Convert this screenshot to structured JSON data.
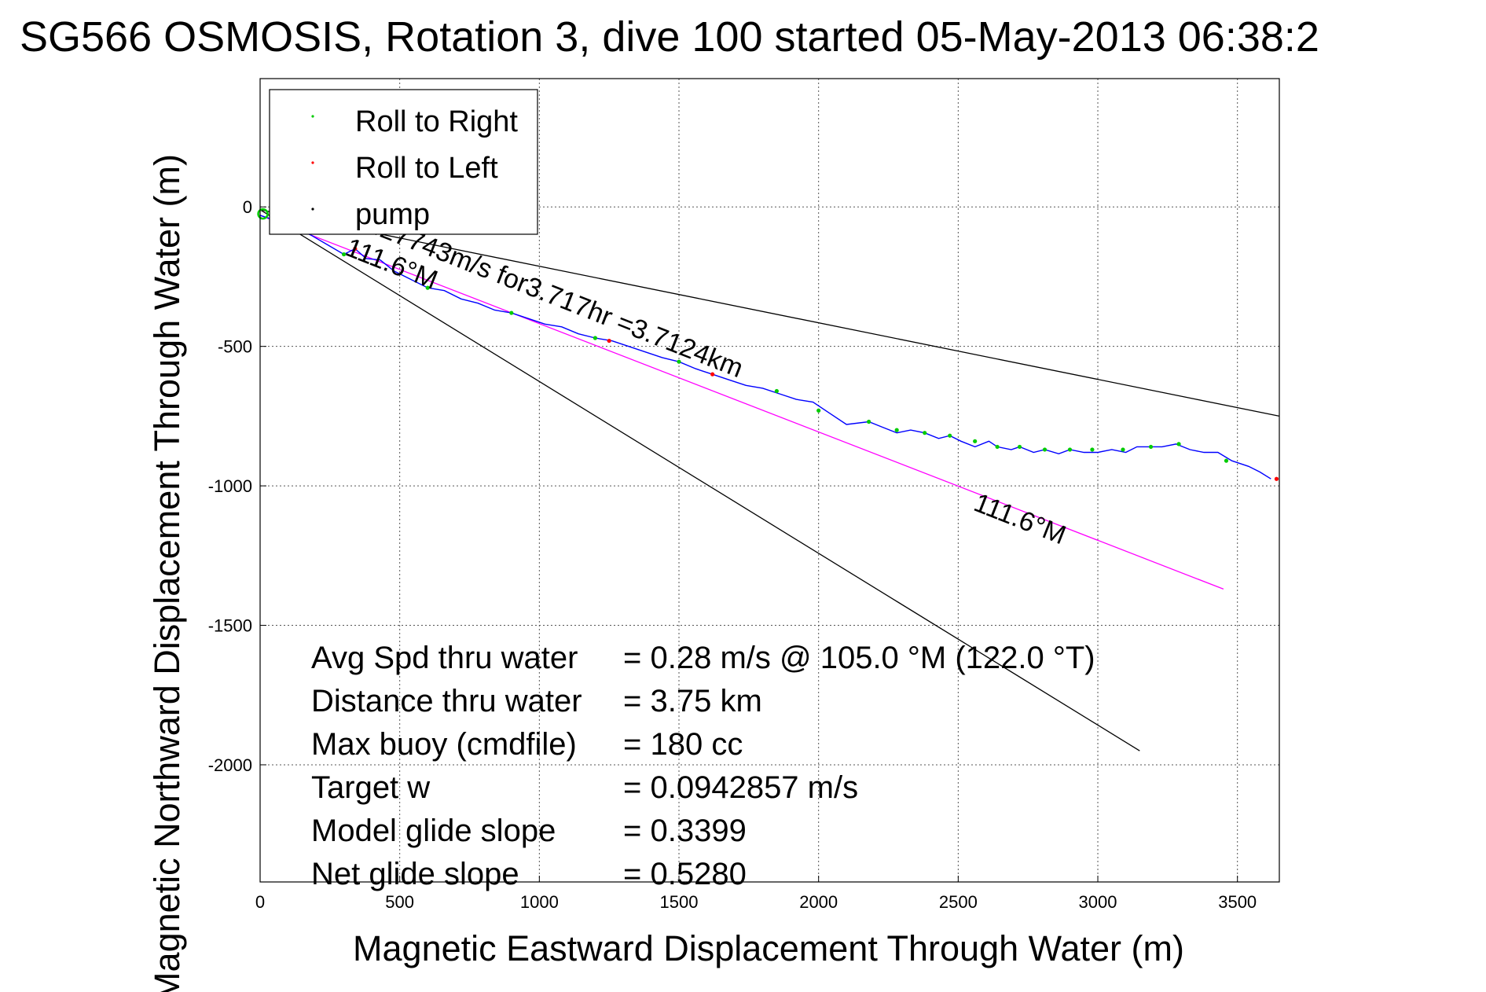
{
  "chart_data": {
    "type": "line",
    "title": "SG566 OSMOSIS, Rotation 3, dive 100 started 05-May-2013 06:38:2",
    "xlabel": "Magnetic Eastward Displacement Through Water (m)",
    "ylabel": "Magnetic Northward Displacement Through Water (m)",
    "xlim": [
      0,
      3650
    ],
    "ylim": [
      -2420,
      460
    ],
    "xticks": [
      0,
      500,
      1000,
      1500,
      2000,
      2500,
      3000,
      3500
    ],
    "yticks": [
      0,
      -500,
      -1000,
      -1500,
      -2000
    ],
    "grid": true,
    "legend_position": "top-left",
    "legend": [
      {
        "label": "Roll to Right",
        "color": "#00cc00"
      },
      {
        "label": "Roll to Left",
        "color": "#ff0000"
      },
      {
        "label": "pump",
        "color": "#000000"
      }
    ],
    "track": {
      "color": "#0000ff",
      "x": [
        0,
        60,
        120,
        180,
        240,
        300,
        340,
        380,
        430,
        480,
        540,
        600,
        660,
        720,
        780,
        840,
        900,
        960,
        1020,
        1080,
        1140,
        1200,
        1260,
        1320,
        1380,
        1440,
        1500,
        1560,
        1620,
        1680,
        1740,
        1800,
        1860,
        1920,
        1980,
        2040,
        2100,
        2180,
        2230,
        2280,
        2330,
        2380,
        2430,
        2470,
        2510,
        2560,
        2610,
        2640,
        2690,
        2720,
        2770,
        2810,
        2860,
        2900,
        2950,
        3000,
        3050,
        3100,
        3140,
        3190,
        3230,
        3280,
        3330,
        3380,
        3430,
        3480,
        3540,
        3580,
        3620
      ],
      "y": [
        -30,
        -50,
        -75,
        -100,
        -135,
        -170,
        -150,
        -185,
        -190,
        -230,
        -260,
        -290,
        -300,
        -330,
        -345,
        -370,
        -380,
        -400,
        -420,
        -430,
        -455,
        -470,
        -480,
        -500,
        -520,
        -540,
        -555,
        -580,
        -600,
        -620,
        -640,
        -650,
        -670,
        -690,
        -700,
        -740,
        -780,
        -770,
        -790,
        -810,
        -800,
        -810,
        -830,
        -820,
        -840,
        -860,
        -840,
        -860,
        -870,
        -860,
        -880,
        -870,
        -885,
        -870,
        -880,
        -880,
        -870,
        -880,
        -860,
        -860,
        -860,
        -850,
        -870,
        -880,
        -880,
        -910,
        -930,
        -950,
        -975
      ]
    },
    "roll_right_points": {
      "color": "#00cc00",
      "x": [
        60,
        300,
        600,
        900,
        1200,
        1500,
        1850,
        2000,
        2180,
        2280,
        2380,
        2470,
        2560,
        2640,
        2720,
        2810,
        2900,
        2980,
        3090,
        3190,
        3290,
        3460
      ],
      "y": [
        -50,
        -170,
        -290,
        -380,
        -470,
        -555,
        -660,
        -730,
        -770,
        -800,
        -810,
        -820,
        -840,
        -860,
        -860,
        -870,
        -870,
        -870,
        -870,
        -860,
        -850,
        -910
      ]
    },
    "roll_left_points": {
      "color": "#ff0000",
      "x": [
        340,
        1250,
        1620,
        3640
      ],
      "y": [
        -150,
        -480,
        -600,
        -975
      ]
    },
    "start_circle": {
      "x": [
        10
      ],
      "y": [
        -25
      ]
    },
    "heading_lines": [
      {
        "color": "#ff00ff",
        "x": [
          0,
          3450
        ],
        "y": [
          -30,
          -1370
        ]
      },
      {
        "color": "#000000",
        "x": [
          0,
          3150
        ],
        "y": [
          -10,
          -1950
        ]
      },
      {
        "color": "#000000",
        "x": [
          0,
          3650
        ],
        "y": [
          -10,
          -750
        ]
      }
    ],
    "annotations": [
      {
        "text": "0.27743m/s for3.717hr =3.7124km",
        "x": 350,
        "y": -75,
        "angle": 21.5
      },
      {
        "text": "111.6°M",
        "x": 300,
        "y": -170,
        "angle": 21.5
      },
      {
        "text": "111.6°M",
        "x": 2550,
        "y": -1085,
        "angle": 21.5
      }
    ]
  },
  "stats": [
    {
      "label": "Avg Spd thru water",
      "value": "=  0.28 m/s @ 105.0 °M (122.0 °T)"
    },
    {
      "label": "Distance thru water",
      "value": "=  3.75 km"
    },
    {
      "label": "Max buoy (cmdfile)",
      "value": "= 180 cc"
    },
    {
      "label": "Target w",
      "value": "= 0.0942857 m/s"
    },
    {
      "label": "Model glide slope",
      "value": "= 0.3399"
    },
    {
      "label": "Net glide slope",
      "value": "= 0.5280"
    }
  ]
}
